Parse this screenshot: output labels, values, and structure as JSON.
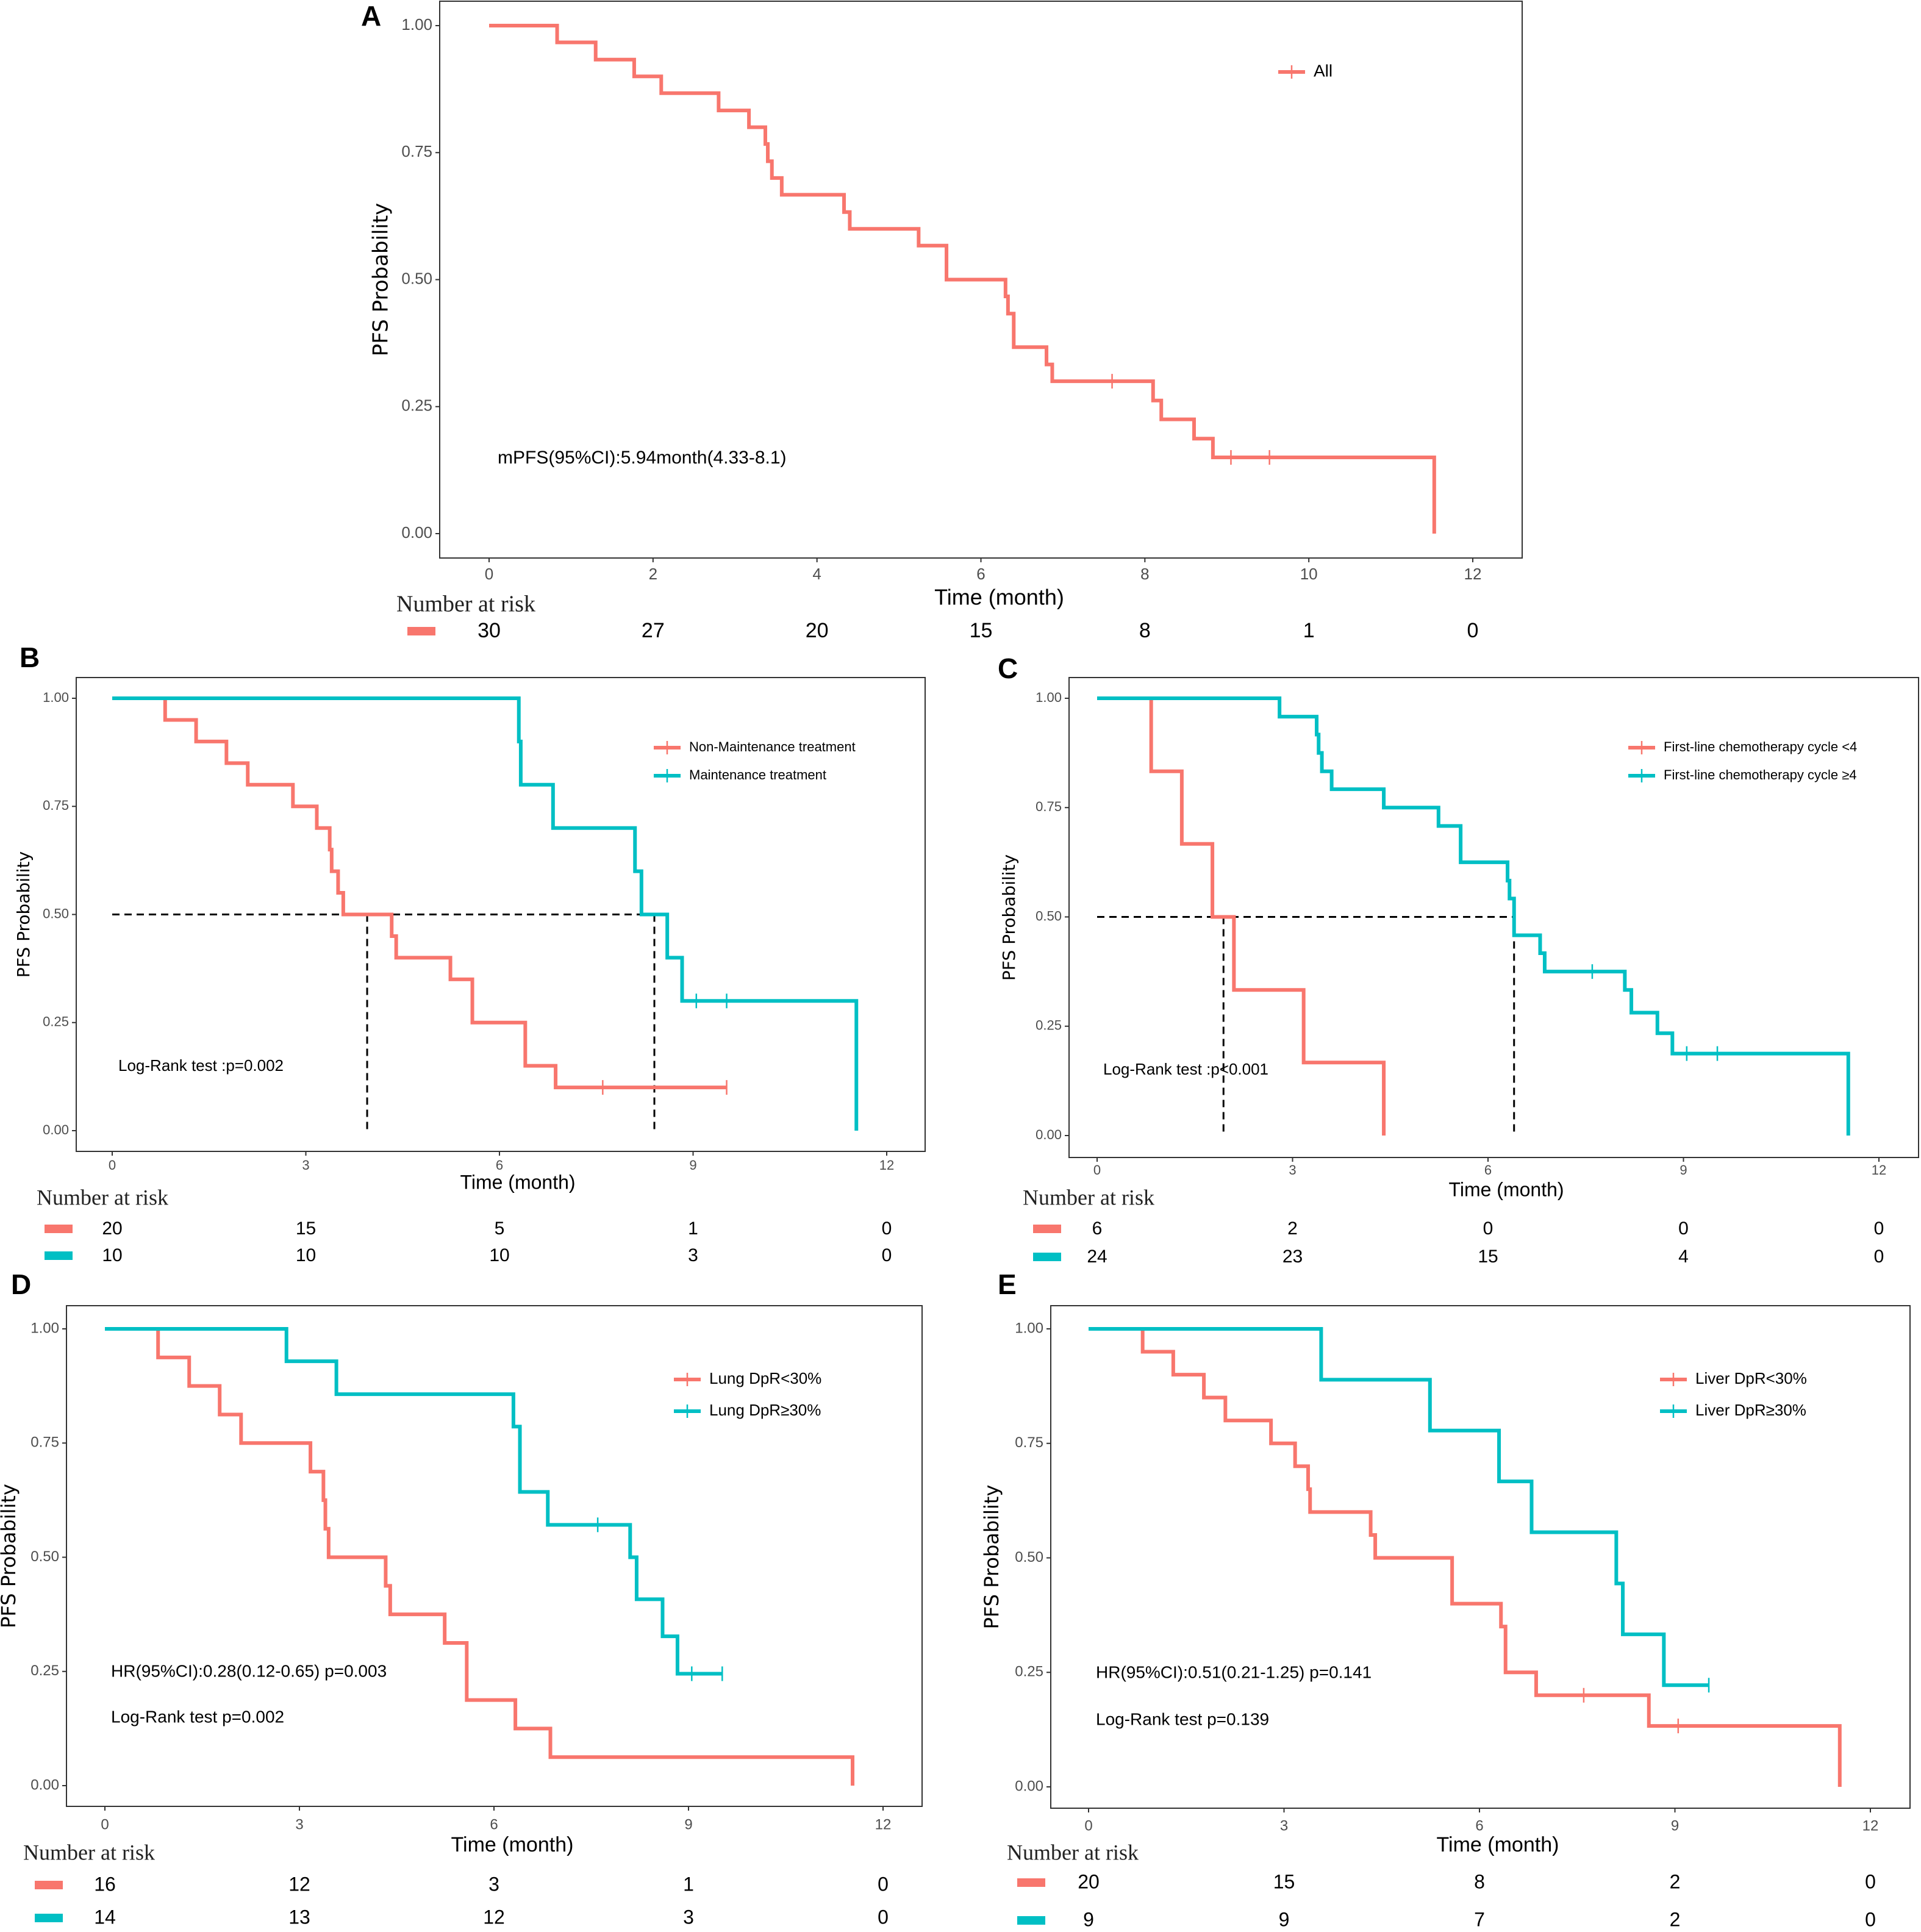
{
  "colors": {
    "group1": "#F8766D",
    "group2": "#00BFC4"
  },
  "chart_data": [
    {
      "panel": "A",
      "type": "line",
      "xlabel": "Time (month)",
      "ylabel": "PFS Probability",
      "xlim": [
        0,
        12
      ],
      "xticks": [
        "0",
        "2",
        "4",
        "6",
        "8",
        "10",
        "12"
      ],
      "xtick_values": [
        0,
        2,
        4,
        6,
        8,
        10,
        12
      ],
      "ylim": [
        0,
        1
      ],
      "yticks": [
        "0.00",
        "0.25",
        "0.50",
        "0.75",
        "1.00"
      ],
      "ytick_values": [
        0,
        0.25,
        0.5,
        0.75,
        1
      ],
      "grid": false,
      "legend_position": "top-right",
      "series": [
        {
          "name": "All",
          "color": "#F8766D",
          "end": 11.53,
          "steps": [
            [
              0.83,
              0.967
            ],
            [
              1.3,
              0.933
            ],
            [
              1.77,
              0.9
            ],
            [
              2.1,
              0.867
            ],
            [
              2.8,
              0.833
            ],
            [
              3.17,
              0.8
            ],
            [
              3.37,
              0.767
            ],
            [
              3.4,
              0.733
            ],
            [
              3.45,
              0.7
            ],
            [
              3.57,
              0.667
            ],
            [
              4.33,
              0.633
            ],
            [
              4.4,
              0.6
            ],
            [
              5.24,
              0.567
            ],
            [
              5.58,
              0.5
            ],
            [
              6.3,
              0.467
            ],
            [
              6.33,
              0.433
            ],
            [
              6.4,
              0.367
            ],
            [
              6.8,
              0.333
            ],
            [
              6.87,
              0.3
            ],
            [
              8.1,
              0.262
            ],
            [
              8.2,
              0.225
            ],
            [
              8.6,
              0.187
            ],
            [
              8.83,
              0.15
            ],
            [
              11.53,
              0
            ]
          ],
          "censor": [
            7.6,
            9.05,
            9.52
          ]
        }
      ],
      "medians": [],
      "annotations": [
        "mPFS(95%CI):5.94month(4.33-8.1)"
      ],
      "risk_table": {
        "title": "Number at risk",
        "times": [
          0,
          2,
          4,
          6,
          8,
          10,
          12
        ],
        "rows": [
          [
            "30",
            "27",
            "20",
            "15",
            "8",
            "1",
            "0"
          ]
        ]
      }
    },
    {
      "panel": "B",
      "type": "line",
      "xlabel": "Time (month)",
      "ylabel": "PFS Probability",
      "xlim": [
        0,
        12
      ],
      "xticks": [
        "0",
        "3",
        "6",
        "9",
        "12"
      ],
      "xtick_values": [
        0,
        3,
        6,
        9,
        12
      ],
      "ylim": [
        0,
        1
      ],
      "yticks": [
        "0.00",
        "0.25",
        "0.50",
        "0.75",
        "1.00"
      ],
      "ytick_values": [
        0,
        0.25,
        0.5,
        0.75,
        1
      ],
      "grid": false,
      "legend_position": "top-right",
      "series": [
        {
          "name": "Non-Maintenance treatment",
          "color": "#F8766D",
          "end": 9.52,
          "steps": [
            [
              0.82,
              0.95
            ],
            [
              1.3,
              0.9
            ],
            [
              1.77,
              0.85
            ],
            [
              2.1,
              0.8
            ],
            [
              2.8,
              0.75
            ],
            [
              3.17,
              0.7
            ],
            [
              3.37,
              0.65
            ],
            [
              3.4,
              0.6
            ],
            [
              3.5,
              0.55
            ],
            [
              3.58,
              0.5
            ],
            [
              4.33,
              0.45
            ],
            [
              4.4,
              0.4
            ],
            [
              5.24,
              0.35
            ],
            [
              5.58,
              0.25
            ],
            [
              6.4,
              0.15
            ],
            [
              6.87,
              0.1
            ]
          ],
          "censor": [
            7.6,
            9.52
          ]
        },
        {
          "name": "Maintenance treatment",
          "color": "#00BFC4",
          "end": 11.53,
          "steps": [
            [
              6.3,
              0.9
            ],
            [
              6.33,
              0.8
            ],
            [
              6.83,
              0.7
            ],
            [
              8.1,
              0.6
            ],
            [
              8.2,
              0.5
            ],
            [
              8.6,
              0.4
            ],
            [
              8.83,
              0.3
            ],
            [
              11.53,
              0
            ]
          ],
          "censor": [
            9.05,
            9.52
          ]
        }
      ],
      "medians": [
        3.95,
        8.4
      ],
      "annotations": [
        "Log-Rank test :p=0.002"
      ],
      "risk_table": {
        "title": "Number at risk",
        "times": [
          0,
          3,
          6,
          9,
          12
        ],
        "rows": [
          [
            "20",
            "15",
            "5",
            "1",
            "0"
          ],
          [
            "10",
            "10",
            "10",
            "3",
            "0"
          ]
        ]
      }
    },
    {
      "panel": "C",
      "type": "line",
      "xlabel": "Time (month)",
      "ylabel": "PFS Probability",
      "xlim": [
        0,
        12
      ],
      "xticks": [
        "0",
        "3",
        "6",
        "9",
        "12"
      ],
      "xtick_values": [
        0,
        3,
        6,
        9,
        12
      ],
      "ylim": [
        0,
        1
      ],
      "yticks": [
        "0.00",
        "0.25",
        "0.50",
        "0.75",
        "1.00"
      ],
      "ytick_values": [
        0,
        0.25,
        0.5,
        0.75,
        1
      ],
      "grid": false,
      "legend_position": "top-right",
      "series": [
        {
          "name": "First-line chemotherapy cycle <4",
          "color": "#F8766D",
          "end": 4.4,
          "steps": [
            [
              0.83,
              0.833
            ],
            [
              1.3,
              0.667
            ],
            [
              1.77,
              0.5
            ],
            [
              2.1,
              0.333
            ],
            [
              3.17,
              0.167
            ],
            [
              4.4,
              0
            ]
          ],
          "censor": []
        },
        {
          "name": "First-line chemotherapy cycle ≥4",
          "color": "#00BFC4",
          "end": 11.53,
          "steps": [
            [
              2.8,
              0.958
            ],
            [
              3.37,
              0.917
            ],
            [
              3.4,
              0.875
            ],
            [
              3.45,
              0.833
            ],
            [
              3.6,
              0.792
            ],
            [
              4.4,
              0.75
            ],
            [
              5.24,
              0.708
            ],
            [
              5.58,
              0.625
            ],
            [
              6.3,
              0.583
            ],
            [
              6.33,
              0.542
            ],
            [
              6.4,
              0.458
            ],
            [
              6.8,
              0.417
            ],
            [
              6.87,
              0.375
            ],
            [
              8.1,
              0.333
            ],
            [
              8.2,
              0.281
            ],
            [
              8.6,
              0.234
            ],
            [
              8.83,
              0.1875
            ],
            [
              11.53,
              0
            ]
          ],
          "censor": [
            7.6,
            9.05,
            9.52
          ]
        }
      ],
      "medians": [
        1.94,
        6.4
      ],
      "annotations": [
        "Log-Rank test :p<0.001"
      ],
      "risk_table": {
        "title": "Number at risk",
        "times": [
          0,
          3,
          6,
          9,
          12
        ],
        "rows": [
          [
            "6",
            "2",
            "0",
            "0",
            "0"
          ],
          [
            "24",
            "23",
            "15",
            "4",
            "0"
          ]
        ]
      }
    },
    {
      "panel": "D",
      "type": "line",
      "xlabel": "Time (month)",
      "ylabel": "PFS Probability",
      "xlim": [
        0,
        12
      ],
      "xticks": [
        "0",
        "3",
        "6",
        "9",
        "12"
      ],
      "xtick_values": [
        0,
        3,
        6,
        9,
        12
      ],
      "ylim": [
        0,
        1
      ],
      "yticks": [
        "0.00",
        "0.25",
        "0.50",
        "0.75",
        "1.00"
      ],
      "ytick_values": [
        0,
        0.25,
        0.5,
        0.75,
        1
      ],
      "grid": false,
      "legend_position": "top-right",
      "series": [
        {
          "name": "Lung DpR<30%",
          "color": "#F8766D",
          "end": 11.53,
          "steps": [
            [
              0.82,
              0.9375
            ],
            [
              1.3,
              0.875
            ],
            [
              1.77,
              0.8125
            ],
            [
              2.1,
              0.75
            ],
            [
              3.17,
              0.6875
            ],
            [
              3.37,
              0.625
            ],
            [
              3.4,
              0.5625
            ],
            [
              3.45,
              0.5
            ],
            [
              4.33,
              0.4375
            ],
            [
              4.4,
              0.375
            ],
            [
              5.24,
              0.3125
            ],
            [
              5.58,
              0.1875
            ],
            [
              6.33,
              0.125
            ],
            [
              6.87,
              0.0625
            ],
            [
              11.53,
              0
            ]
          ],
          "censor": []
        },
        {
          "name": "Lung DpR≥30%",
          "color": "#00BFC4",
          "end": 9.52,
          "steps": [
            [
              2.8,
              0.929
            ],
            [
              3.57,
              0.857
            ],
            [
              6.3,
              0.786
            ],
            [
              6.4,
              0.643
            ],
            [
              6.83,
              0.571
            ],
            [
              8.1,
              0.5
            ],
            [
              8.2,
              0.408
            ],
            [
              8.6,
              0.327
            ],
            [
              8.83,
              0.245
            ]
          ],
          "censor": [
            7.6,
            9.05,
            9.52
          ]
        }
      ],
      "medians": [],
      "annotations": [
        "HR(95%CI):0.28(0.12-0.65) p=0.003",
        "Log-Rank test p=0.002"
      ],
      "risk_table": {
        "title": "Number at risk",
        "times": [
          0,
          3,
          6,
          9,
          12
        ],
        "rows": [
          [
            "16",
            "12",
            "3",
            "1",
            "0"
          ],
          [
            "14",
            "13",
            "12",
            "3",
            "0"
          ]
        ]
      }
    },
    {
      "panel": "E",
      "type": "line",
      "xlabel": "Time (month)",
      "ylabel": "PFS Probability",
      "xlim": [
        0,
        12
      ],
      "xticks": [
        "0",
        "3",
        "6",
        "9",
        "12"
      ],
      "xtick_values": [
        0,
        3,
        6,
        9,
        12
      ],
      "ylim": [
        0,
        1
      ],
      "yticks": [
        "0.00",
        "0.25",
        "0.50",
        "0.75",
        "1.00"
      ],
      "ytick_values": [
        0,
        0.25,
        0.5,
        0.75,
        1
      ],
      "grid": false,
      "legend_position": "top-right",
      "series": [
        {
          "name": "Liver DpR<30%",
          "color": "#F8766D",
          "end": 11.53,
          "steps": [
            [
              0.83,
              0.95
            ],
            [
              1.3,
              0.9
            ],
            [
              1.77,
              0.85
            ],
            [
              2.1,
              0.8
            ],
            [
              2.8,
              0.75
            ],
            [
              3.17,
              0.7
            ],
            [
              3.37,
              0.65
            ],
            [
              3.4,
              0.6
            ],
            [
              4.33,
              0.55
            ],
            [
              4.4,
              0.5
            ],
            [
              5.58,
              0.4
            ],
            [
              6.33,
              0.35
            ],
            [
              6.4,
              0.25
            ],
            [
              6.87,
              0.2
            ],
            [
              8.6,
              0.133
            ],
            [
              11.53,
              0
            ]
          ],
          "censor": [
            7.6,
            9.05
          ]
        },
        {
          "name": "Liver  DpR≥30%",
          "color": "#00BFC4",
          "end": 9.52,
          "steps": [
            [
              3.57,
              0.889
            ],
            [
              5.24,
              0.778
            ],
            [
              6.3,
              0.667
            ],
            [
              6.8,
              0.556
            ],
            [
              8.1,
              0.444
            ],
            [
              8.2,
              0.333
            ],
            [
              8.83,
              0.222
            ]
          ],
          "censor": [
            9.52
          ]
        }
      ],
      "medians": [],
      "annotations": [
        "HR(95%CI):0.51(0.21-1.25) p=0.141",
        "Log-Rank test p=0.139"
      ],
      "risk_table": {
        "title": "Number at risk",
        "times": [
          0,
          3,
          6,
          9,
          12
        ],
        "rows": [
          [
            "20",
            "15",
            "8",
            "2",
            "0"
          ],
          [
            "9",
            "9",
            "7",
            "2",
            "0"
          ]
        ]
      }
    }
  ]
}
